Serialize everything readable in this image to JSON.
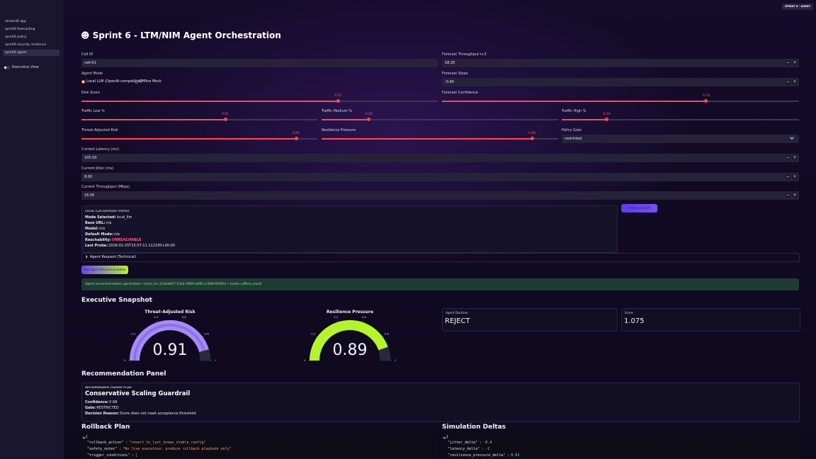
{
  "sidebar": {
    "nav": [
      "streamlit app",
      "sprint6 forecasting",
      "sprint6 policy",
      "sprint6 security resilience",
      "sprint6 agent"
    ],
    "active": 4,
    "toggle": "Executive View"
  },
  "badge": "SPRINT 6 · AGENT",
  "title": "☻ Sprint 6 - LTM/NIM Agent Orchestration",
  "inputs": [
    {
      "label": "Cell ID",
      "value": "cell-01",
      "stepper": false
    },
    {
      "label": "Forecast Throughput t+3",
      "value": "18.20",
      "stepper": true
    },
    {
      "label": "Forecast Slope",
      "value": "-0.60",
      "stepper": true
    },
    {
      "label": "Current Latency (ms)",
      "value": "105.00",
      "stepper": true
    },
    {
      "label": "Current Jitter (ms)",
      "value": "8.00",
      "stepper": true
    },
    {
      "label": "Current Throughput (Mbps)",
      "value": "16.00",
      "stepper": true
    }
  ],
  "agent_mode": {
    "label": "Agent Mode",
    "options": [
      "Local LLM (OpenAI-compatible)",
      "Offline Mock"
    ],
    "selected": 0
  },
  "sliders": [
    {
      "label": "Risk Score",
      "value": 0.72,
      "range": [
        0,
        1
      ]
    },
    {
      "label": "Forecast Confidence",
      "value": 0.74,
      "range": [
        0,
        1
      ]
    },
    {
      "label": "Traffic Low %",
      "value": 0.61,
      "range": [
        0,
        1
      ]
    },
    {
      "label": "Traffic Medium %",
      "value": 0.2,
      "value_label": "0.20",
      "range": [
        0,
        1
      ]
    },
    {
      "label": "Traffic High %",
      "value": 0.19,
      "range": [
        0,
        1
      ]
    },
    {
      "label": "Threat-Adjusted Risk",
      "value": 0.91,
      "range": [
        0,
        1
      ]
    },
    {
      "label": "Resilience Pressure",
      "value": 0.89,
      "range": [
        0,
        1
      ]
    }
  ],
  "policy_gate": {
    "label": "Policy Gate",
    "value": "restricted"
  },
  "status": {
    "heading": "LOCAL LLM GATEWAY STATUS",
    "lines": [
      {
        "key": "Mode Selected:",
        "value": "local_llm"
      },
      {
        "key": "Base URL:",
        "value": "n/a"
      },
      {
        "key": "Model:",
        "value": "n/a"
      },
      {
        "key": "Default Mode:",
        "value": "n/a"
      },
      {
        "key": "Reachability:",
        "value": "UNREACHABLE"
      },
      {
        "key": "Last Probe:",
        "value": "2026-02-25T15:57:11.112330+00:00"
      }
    ]
  },
  "probe_button": "Probe Local LLM",
  "expander": "Agent Request (Technical)",
  "run_button": "Run Agent Recommendation",
  "success": "Agent recommendation generated • trace_id=13dea857-13e4-4960-a6f8-cc308cf05952 • mode=offline_mock",
  "snapshot": {
    "heading": "Executive Snapshot",
    "gauges": [
      {
        "title": "Threat-Adjusted Risk",
        "value": 0.91,
        "range": [
          0,
          1
        ],
        "ticks": [
          0,
          0.2,
          0.4,
          0.6,
          0.8,
          1
        ],
        "color": "#a78bfa"
      },
      {
        "title": "Resilience Pressure",
        "value": 0.89,
        "range": [
          0,
          1
        ],
        "ticks": [
          0,
          0.2,
          0.4,
          0.6,
          0.8,
          1
        ],
        "color": "#b5f42c"
      }
    ],
    "cards": [
      {
        "label": "Agent Decision",
        "value": "REJECT"
      },
      {
        "label": "Score",
        "value": "1.075"
      }
    ]
  },
  "recommendation": {
    "heading": "Recommendation Panel",
    "kicker": "RECOMMENDED CHANGE PLAN",
    "name": "Conservative Scaling Guardrail",
    "lines": [
      {
        "key": "Confidence:",
        "value": "0.68"
      },
      {
        "key": "Gate:",
        "value": "RESTRICTED"
      },
      {
        "key": "Decision Reason:",
        "value": "Score does not meet acceptance threshold"
      }
    ]
  },
  "rollback": {
    "heading": "Rollback Plan",
    "open": "{",
    "lines": [
      {
        "key": "\"rollback_action\"",
        "value": "\"revert_to_last_known_stable_config\""
      },
      {
        "key": "\"safety_notes\"",
        "value": "\"No live execution; produce rollback playbook only\""
      },
      {
        "key": "\"trigger_conditions\"",
        "value": "["
      }
    ]
  },
  "deltas": {
    "heading": "Simulation Deltas",
    "open": "{",
    "lines": [
      {
        "key": "\"jitter_delta\"",
        "value": -0.4
      },
      {
        "key": "\"latency_delta\"",
        "value": -2
      },
      {
        "key": "\"resilience_pressure_delta\"",
        "value": 0.01
      }
    ]
  }
}
